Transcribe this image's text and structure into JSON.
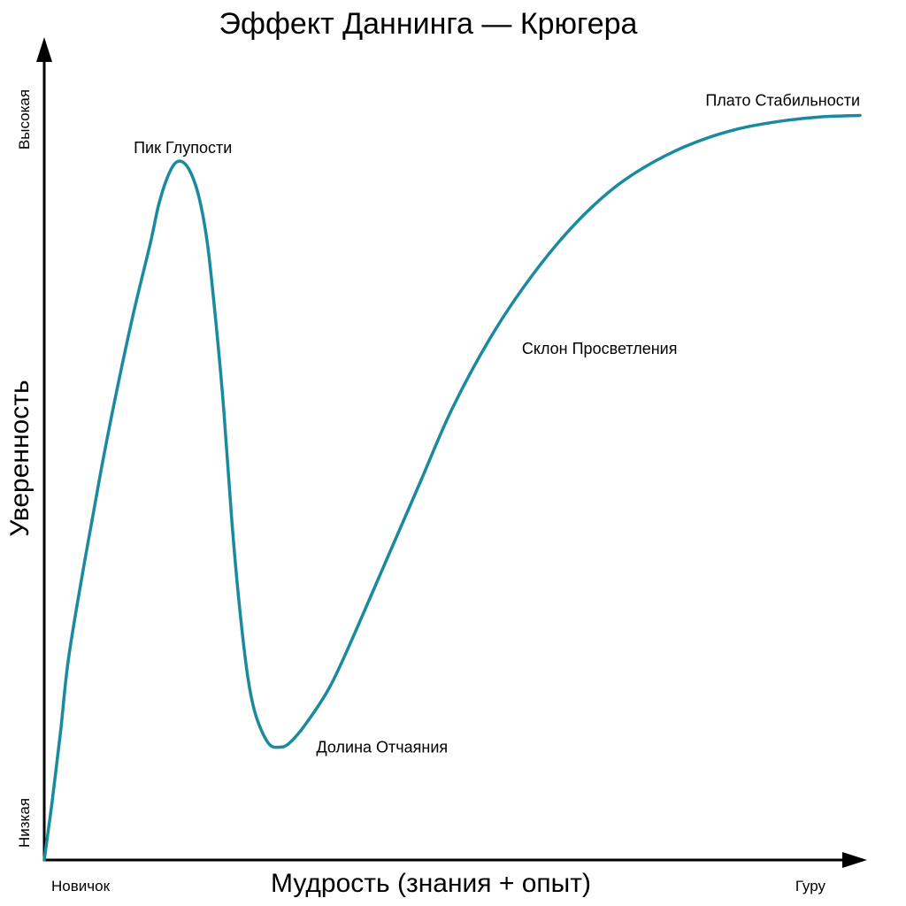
{
  "chart_data": {
    "type": "line",
    "title": "Эффект Даннинга — Крюгера",
    "xlabel": "Мудрость (знания + опыт)",
    "ylabel": "Уверенность",
    "x_tick_labels": {
      "start": "Новичок",
      "end": "Гуру"
    },
    "y_tick_labels": {
      "low": "Низкая",
      "high": "Высокая"
    },
    "xlim": [
      0,
      100
    ],
    "ylim": [
      0,
      100
    ],
    "grid": false,
    "legend": "none",
    "series": [
      {
        "color": "#1a8a9e",
        "points": [
          [
            0,
            0
          ],
          [
            1,
            8
          ],
          [
            2,
            17
          ],
          [
            3,
            27
          ],
          [
            5,
            40
          ],
          [
            7,
            52
          ],
          [
            9,
            63
          ],
          [
            11,
            73
          ],
          [
            13,
            82
          ],
          [
            14,
            87
          ],
          [
            15,
            90.5
          ],
          [
            16,
            92.6
          ],
          [
            17,
            92.8
          ],
          [
            18,
            91.3
          ],
          [
            19,
            88
          ],
          [
            20,
            82
          ],
          [
            21,
            72
          ],
          [
            22,
            60
          ],
          [
            23,
            45
          ],
          [
            24,
            33
          ],
          [
            25,
            24
          ],
          [
            26,
            19
          ],
          [
            27.5,
            15.5
          ],
          [
            28.8,
            15
          ],
          [
            30,
            15.5
          ],
          [
            32,
            18
          ],
          [
            35,
            23
          ],
          [
            38,
            30
          ],
          [
            42,
            40
          ],
          [
            46,
            50
          ],
          [
            50,
            60
          ],
          [
            55,
            70
          ],
          [
            60,
            78
          ],
          [
            65,
            84.5
          ],
          [
            70,
            89.5
          ],
          [
            75,
            93
          ],
          [
            80,
            95.5
          ],
          [
            85,
            97.2
          ],
          [
            90,
            98.2
          ],
          [
            95,
            98.8
          ],
          [
            100,
            99
          ]
        ]
      }
    ],
    "annotations": [
      {
        "text": "Пик Глупости",
        "x": 17,
        "y": 92.8,
        "placement": "above"
      },
      {
        "text": "Долина Отчаяния",
        "x": 28.8,
        "y": 15,
        "placement": "right"
      },
      {
        "text": "Склон Просветления",
        "x": 54,
        "y": 68,
        "placement": "right"
      },
      {
        "text": "Плато Стабильности",
        "x": 100,
        "y": 99,
        "placement": "above-left"
      }
    ]
  }
}
